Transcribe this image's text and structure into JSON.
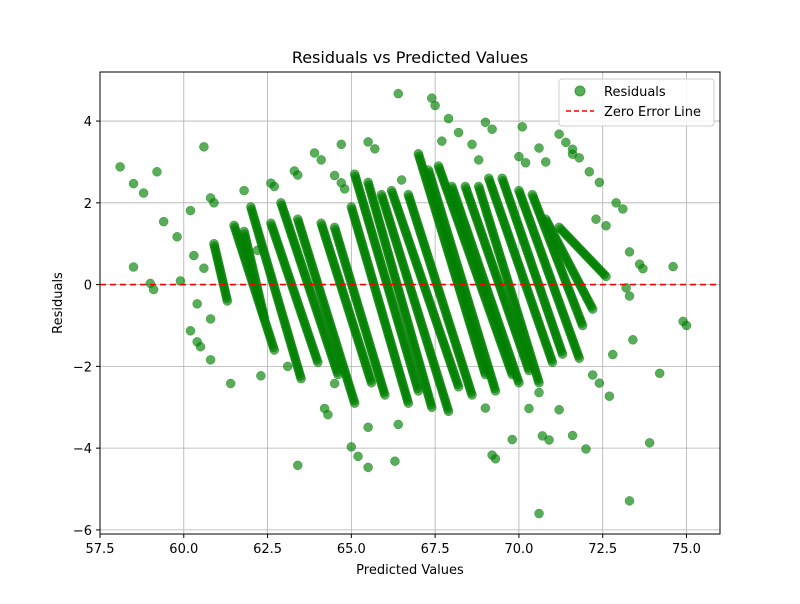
{
  "chart_data": {
    "type": "scatter",
    "title": "Residuals vs Predicted Values",
    "xlabel": "Predicted Values",
    "ylabel": "Residuals",
    "xlim": [
      57.5,
      76.0
    ],
    "ylim": [
      -6.1,
      5.2
    ],
    "x_ticks": [
      57.5,
      60.0,
      62.5,
      65.0,
      67.5,
      70.0,
      72.5,
      75.0
    ],
    "x_tick_labels": [
      "57.5",
      "60.0",
      "62.5",
      "65.0",
      "67.5",
      "70.0",
      "72.5",
      "75.0"
    ],
    "y_ticks": [
      -6,
      -4,
      -2,
      0,
      2,
      4
    ],
    "y_tick_labels": [
      "−6",
      "−4",
      "−2",
      "0",
      "2",
      "4"
    ],
    "grid": true,
    "legend_position": "top-right",
    "series": [
      {
        "name": "Residuals",
        "kind": "scatter",
        "color": "#008000",
        "points": [
          [
            58.1,
            2.88
          ],
          [
            58.5,
            2.47
          ],
          [
            58.8,
            2.24
          ],
          [
            58.5,
            0.43
          ],
          [
            59.0,
            0.03
          ],
          [
            59.1,
            -0.12
          ],
          [
            59.2,
            2.76
          ],
          [
            59.4,
            1.54
          ],
          [
            59.8,
            1.17
          ],
          [
            59.9,
            0.09
          ],
          [
            60.2,
            1.81
          ],
          [
            60.3,
            0.71
          ],
          [
            60.2,
            -1.13
          ],
          [
            60.4,
            -1.4
          ],
          [
            60.5,
            -1.52
          ],
          [
            60.4,
            -0.47
          ],
          [
            60.6,
            3.37
          ],
          [
            60.8,
            2.12
          ],
          [
            60.9,
            2.0
          ],
          [
            60.8,
            -0.84
          ],
          [
            60.8,
            -1.84
          ],
          [
            61.4,
            -2.42
          ],
          [
            60.6,
            0.4
          ],
          [
            61.8,
            2.3
          ],
          [
            62.2,
            0.84
          ],
          [
            62.3,
            -2.23
          ],
          [
            62.6,
            2.48
          ],
          [
            62.7,
            2.4
          ],
          [
            63.4,
            -4.42
          ],
          [
            63.1,
            -2.0
          ],
          [
            63.3,
            2.78
          ],
          [
            63.4,
            2.68
          ],
          [
            63.9,
            3.22
          ],
          [
            64.1,
            3.05
          ],
          [
            64.5,
            2.67
          ],
          [
            64.7,
            2.49
          ],
          [
            64.7,
            3.43
          ],
          [
            64.8,
            2.34
          ],
          [
            64.5,
            -2.42
          ],
          [
            64.2,
            -3.03
          ],
          [
            64.3,
            -3.18
          ],
          [
            65.0,
            -3.97
          ],
          [
            65.2,
            -4.2
          ],
          [
            65.5,
            -4.47
          ],
          [
            65.5,
            -3.49
          ],
          [
            65.5,
            3.49
          ],
          [
            65.7,
            3.32
          ],
          [
            66.3,
            -4.32
          ],
          [
            66.4,
            -3.42
          ],
          [
            66.4,
            4.67
          ],
          [
            66.5,
            2.56
          ],
          [
            67.4,
            4.56
          ],
          [
            67.5,
            4.38
          ],
          [
            67.7,
            3.51
          ],
          [
            67.9,
            4.06
          ],
          [
            68.2,
            3.72
          ],
          [
            68.6,
            3.43
          ],
          [
            68.8,
            3.05
          ],
          [
            69.0,
            3.97
          ],
          [
            69.2,
            3.8
          ],
          [
            69.0,
            -3.02
          ],
          [
            69.2,
            -4.17
          ],
          [
            69.3,
            -4.26
          ],
          [
            69.8,
            -3.79
          ],
          [
            70.0,
            3.13
          ],
          [
            70.1,
            3.86
          ],
          [
            70.2,
            2.98
          ],
          [
            70.6,
            3.34
          ],
          [
            70.8,
            3.0
          ],
          [
            71.2,
            3.68
          ],
          [
            71.4,
            3.48
          ],
          [
            71.6,
            3.31
          ],
          [
            71.6,
            3.19
          ],
          [
            71.8,
            3.1
          ],
          [
            72.1,
            2.76
          ],
          [
            72.3,
            1.6
          ],
          [
            72.4,
            2.5
          ],
          [
            72.6,
            1.44
          ],
          [
            72.9,
            2.0
          ],
          [
            73.1,
            1.85
          ],
          [
            73.3,
            0.8
          ],
          [
            73.2,
            -0.08
          ],
          [
            73.3,
            -0.28
          ],
          [
            73.6,
            0.5
          ],
          [
            73.7,
            0.39
          ],
          [
            74.6,
            0.44
          ],
          [
            74.9,
            -0.9
          ],
          [
            75.0,
            -1.0
          ],
          [
            73.4,
            -1.35
          ],
          [
            74.2,
            -2.17
          ],
          [
            73.9,
            -3.87
          ],
          [
            73.3,
            -5.29
          ],
          [
            72.0,
            -4.02
          ],
          [
            71.6,
            -3.69
          ],
          [
            72.2,
            -2.21
          ],
          [
            72.4,
            -2.41
          ],
          [
            72.7,
            -2.73
          ],
          [
            72.8,
            -1.71
          ],
          [
            71.2,
            -3.06
          ],
          [
            70.9,
            -3.8
          ],
          [
            70.7,
            -3.7
          ],
          [
            70.6,
            -5.6
          ],
          [
            70.3,
            -3.03
          ],
          [
            70.6,
            -2.64
          ]
        ],
        "bands": [
          {
            "x_start": 60.9,
            "y_start": 1.0,
            "x_end": 61.3,
            "y_end": -0.4
          },
          {
            "x_start": 61.5,
            "y_start": 1.45,
            "x_end": 62.7,
            "y_end": -1.6
          },
          {
            "x_start": 61.8,
            "y_start": 1.3,
            "x_end": 62.4,
            "y_end": -0.8
          },
          {
            "x_start": 62.0,
            "y_start": 1.9,
            "x_end": 63.5,
            "y_end": -2.3
          },
          {
            "x_start": 62.6,
            "y_start": 1.5,
            "x_end": 64.0,
            "y_end": -1.9
          },
          {
            "x_start": 62.9,
            "y_start": 2.0,
            "x_end": 64.6,
            "y_end": -2.2
          },
          {
            "x_start": 63.4,
            "y_start": 1.6,
            "x_end": 65.1,
            "y_end": -2.9
          },
          {
            "x_start": 64.1,
            "y_start": 1.5,
            "x_end": 65.6,
            "y_end": -2.4
          },
          {
            "x_start": 64.5,
            "y_start": 1.4,
            "x_end": 66.0,
            "y_end": -2.7
          },
          {
            "x_start": 65.0,
            "y_start": 1.9,
            "x_end": 66.7,
            "y_end": -2.9
          },
          {
            "x_start": 65.1,
            "y_start": 2.7,
            "x_end": 67.0,
            "y_end": -2.6
          },
          {
            "x_start": 65.5,
            "y_start": 2.5,
            "x_end": 67.4,
            "y_end": -3.0
          },
          {
            "x_start": 65.9,
            "y_start": 2.2,
            "x_end": 67.9,
            "y_end": -3.1
          },
          {
            "x_start": 66.2,
            "y_start": 2.3,
            "x_end": 68.2,
            "y_end": -2.5
          },
          {
            "x_start": 66.7,
            "y_start": 2.2,
            "x_end": 68.6,
            "y_end": -2.7
          },
          {
            "x_start": 67.0,
            "y_start": 3.2,
            "x_end": 69.0,
            "y_end": -2.2
          },
          {
            "x_start": 67.3,
            "y_start": 2.8,
            "x_end": 69.3,
            "y_end": -2.6
          },
          {
            "x_start": 67.6,
            "y_start": 2.9,
            "x_end": 69.8,
            "y_end": -2.2
          },
          {
            "x_start": 68.0,
            "y_start": 2.4,
            "x_end": 70.0,
            "y_end": -2.4
          },
          {
            "x_start": 68.4,
            "y_start": 2.4,
            "x_end": 70.3,
            "y_end": -2.1
          },
          {
            "x_start": 68.8,
            "y_start": 2.4,
            "x_end": 70.6,
            "y_end": -2.4
          },
          {
            "x_start": 69.1,
            "y_start": 2.6,
            "x_end": 71.0,
            "y_end": -1.9
          },
          {
            "x_start": 69.5,
            "y_start": 2.6,
            "x_end": 71.3,
            "y_end": -1.7
          },
          {
            "x_start": 70.0,
            "y_start": 2.3,
            "x_end": 71.8,
            "y_end": -1.8
          },
          {
            "x_start": 70.4,
            "y_start": 2.2,
            "x_end": 71.9,
            "y_end": -1.0
          },
          {
            "x_start": 70.8,
            "y_start": 1.6,
            "x_end": 72.2,
            "y_end": -0.6
          },
          {
            "x_start": 71.2,
            "y_start": 1.4,
            "x_end": 72.6,
            "y_end": 0.2
          }
        ]
      },
      {
        "name": "Zero Error Line",
        "kind": "hline",
        "y": 0,
        "color": "#ff0000",
        "style": "dashed"
      }
    ]
  }
}
